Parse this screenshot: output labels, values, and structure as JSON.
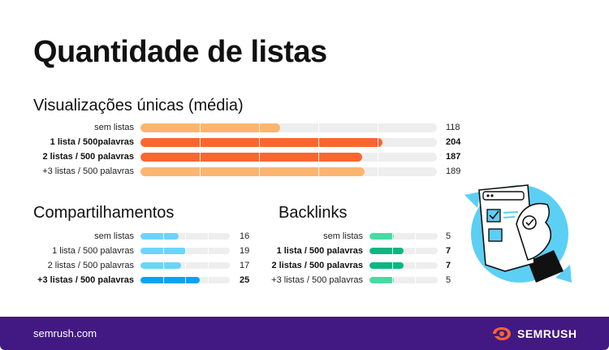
{
  "header": {
    "title": "Quantidade de listas"
  },
  "chart_data": [
    {
      "type": "bar",
      "title": "Visualizações únicas (média)",
      "categories": [
        "sem listas",
        "1 lista / 500palavras",
        "2 listas / 500 palavras",
        "+3 listas / 500 palavras"
      ],
      "values": [
        118,
        204,
        187,
        189
      ],
      "bold": [
        false,
        true,
        true,
        false
      ],
      "colors": [
        "#fcb571",
        "#fa6633",
        "#fa6633",
        "#fcb571"
      ],
      "xlim": [
        0,
        250
      ]
    },
    {
      "type": "bar",
      "title": "Compartilhamentos",
      "categories": [
        "sem listas",
        "1 lista / 500 palavras",
        "2 listas / 500 palavras",
        "+3 listas / 500 palavras"
      ],
      "values": [
        16,
        19,
        17,
        25
      ],
      "bold": [
        false,
        false,
        false,
        true
      ],
      "colors": [
        "#6bd5fb",
        "#6bd5fb",
        "#6bd5fb",
        "#0aa3f4"
      ],
      "xlim": [
        0,
        37.5
      ]
    },
    {
      "type": "bar",
      "title": "Backlinks",
      "categories": [
        "sem listas",
        "1 lista / 500 palavras",
        "2 listas / 500 palavras",
        "+3 listas / 500 palavras"
      ],
      "values": [
        5,
        7,
        7,
        5
      ],
      "bold": [
        false,
        true,
        true,
        false
      ],
      "colors": [
        "#46dba2",
        "#0bb682",
        "#0bb682",
        "#46dba2"
      ],
      "xlim": [
        0,
        14
      ]
    }
  ],
  "footer": {
    "url": "semrush.com",
    "brand": "SEMRUSH",
    "brand_icon": "semrush-fire-icon"
  },
  "illustration": {
    "icon": "checklist-ok-hand-icon",
    "accent": "#5ccff5"
  }
}
